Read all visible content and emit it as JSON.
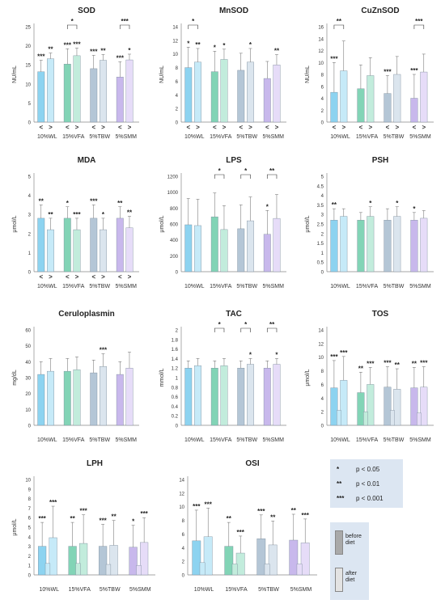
{
  "chart_data": [
    {
      "type": "bar",
      "title": "SOD",
      "ylabel": "NU/mL",
      "ylim": [
        0,
        25
      ],
      "yticks": [
        0,
        5,
        10,
        15,
        20,
        25
      ],
      "categories": [
        "10%WL",
        "15%VFA",
        "5%TBW",
        "5%SMM"
      ],
      "before": [
        13.2,
        15.2,
        14.0,
        11.8
      ],
      "after": [
        16.6,
        17.4,
        16.2,
        16.3
      ],
      "before_err": [
        3,
        4,
        3.5,
        4
      ],
      "after_err": [
        1.5,
        2,
        1.5,
        1.5
      ],
      "sig_within": [
        "***",
        "**",
        "***",
        "***",
        "***",
        "**",
        "***",
        "*"
      ],
      "brackets": [
        {
          "g": 1,
          "label": "*"
        },
        {
          "g": 3,
          "label": "***"
        }
      ],
      "x_ticks": [
        "<",
        ">",
        "<",
        ">",
        "<",
        ">",
        "<",
        ">"
      ]
    },
    {
      "type": "bar",
      "title": "MnSOD",
      "ylabel": "NU/mL",
      "ylim": [
        0,
        14
      ],
      "yticks": [
        0,
        2,
        4,
        6,
        8,
        10,
        12,
        14
      ],
      "categories": [
        "10%WL",
        "15%VFA",
        "5%TBW",
        "5%SMM"
      ],
      "before": [
        8.0,
        7.4,
        7.6,
        6.4
      ],
      "after": [
        8.8,
        9.2,
        8.8,
        8.4
      ],
      "before_err": [
        3,
        3,
        2.5,
        2.5
      ],
      "after_err": [
        2,
        1.5,
        2,
        1.5
      ],
      "sig_within": [
        "*",
        "**",
        "*",
        "*",
        "",
        "*",
        "",
        "**"
      ],
      "brackets": [
        {
          "g": 0,
          "label": "*"
        }
      ],
      "x_ticks": [
        "<",
        ">",
        "<",
        ">",
        "<",
        ">",
        "<",
        ">"
      ]
    },
    {
      "type": "bar",
      "title": "CuZnSOD",
      "ylabel": "NU/mL",
      "ylim": [
        0,
        16
      ],
      "yticks": [
        0,
        2,
        4,
        6,
        8,
        10,
        12,
        14,
        16
      ],
      "categories": [
        "10%WL",
        "15%VFA",
        "5%TBW",
        "5%SMM"
      ],
      "before": [
        5.0,
        5.6,
        4.8,
        4.0
      ],
      "after": [
        8.6,
        7.8,
        8.0,
        8.4
      ],
      "before_err": [
        5,
        4,
        3,
        4
      ],
      "after_err": [
        5,
        3,
        3,
        3
      ],
      "sig_within": [
        "***",
        "",
        "",
        "",
        "***",
        "",
        "***",
        ""
      ],
      "brackets": [
        {
          "g": 0,
          "label": "**"
        },
        {
          "g": 3,
          "label": "***"
        }
      ],
      "x_ticks": [
        "<",
        ">",
        "<",
        ">",
        "<",
        ">",
        "<",
        ">"
      ]
    },
    {
      "type": "bar",
      "title": "MDA",
      "ylabel": "μmol/L",
      "ylim": [
        0,
        5
      ],
      "yticks": [
        0,
        1,
        2,
        3,
        4,
        5
      ],
      "categories": [
        "10%WL",
        "15%VFA",
        "5%TBW",
        "5%SMM"
      ],
      "before": [
        2.8,
        2.8,
        2.8,
        2.8
      ],
      "after": [
        2.2,
        2.2,
        2.2,
        2.3
      ],
      "before_err": [
        0.7,
        0.6,
        0.7,
        0.6
      ],
      "after_err": [
        0.6,
        0.6,
        0.6,
        0.6
      ],
      "sig_within": [
        "**",
        "**",
        "*",
        "***",
        "***",
        "*",
        "**",
        "**"
      ],
      "brackets": [],
      "x_ticks": [
        "<",
        ">",
        "<",
        ">",
        "<",
        ">",
        "<",
        ">"
      ]
    },
    {
      "type": "bar",
      "title": "LPS",
      "ylabel": "μmol/L",
      "ylim": [
        0,
        1200
      ],
      "yticks": [
        0,
        200,
        400,
        600,
        800,
        1000,
        1200
      ],
      "categories": [
        "10%WL",
        "15%VFA",
        "5%TBW",
        "5%SMM"
      ],
      "before": [
        590,
        690,
        540,
        470
      ],
      "after": [
        580,
        530,
        640,
        670
      ],
      "before_err": [
        330,
        300,
        300,
        300
      ],
      "after_err": [
        330,
        300,
        300,
        300
      ],
      "sig_within": [
        "",
        "",
        "",
        "",
        "",
        "",
        "*",
        ""
      ],
      "brackets": [
        {
          "g": 1,
          "label": "*"
        },
        {
          "g": 2,
          "label": "*"
        },
        {
          "g": 3,
          "label": "**"
        }
      ],
      "x_ticks": [
        "",
        "",
        "",
        "",
        "",
        "",
        "",
        ""
      ]
    },
    {
      "type": "bar",
      "title": "PSH",
      "ylabel": "μmol/L",
      "ylim": [
        0,
        5
      ],
      "yticks": [
        0,
        0.5,
        1,
        1.5,
        2,
        2.5,
        3,
        3.5,
        4,
        4.5,
        5
      ],
      "categories": [
        "10%WL",
        "15%VFA",
        "5%TBW",
        "5%SMM"
      ],
      "before": [
        2.7,
        2.7,
        2.7,
        2.7
      ],
      "after": [
        2.9,
        2.9,
        2.9,
        2.8
      ],
      "before_err": [
        0.6,
        0.4,
        0.6,
        0.4
      ],
      "after_err": [
        0.4,
        0.5,
        0.5,
        0.4
      ],
      "sig_within": [
        "**",
        "",
        "",
        "*",
        "",
        "*",
        "*",
        ""
      ],
      "brackets": [],
      "x_ticks": [
        "",
        "",
        "",
        "",
        "",
        "",
        "",
        ""
      ]
    },
    {
      "type": "bar",
      "title": "Ceruloplasmin",
      "ylabel": "mg/dL",
      "ylim": [
        0,
        60
      ],
      "yticks": [
        0,
        10,
        20,
        30,
        40,
        50,
        60
      ],
      "categories": [
        "10%WL",
        "15%VFA",
        "5%TBW",
        "5%SMM"
      ],
      "before": [
        32,
        34,
        33,
        32
      ],
      "after": [
        34,
        35,
        37,
        36
      ],
      "before_err": [
        8,
        8,
        8,
        8
      ],
      "after_err": [
        8,
        8,
        8,
        10
      ],
      "sig_within": [
        "",
        "",
        "",
        "",
        "",
        "***",
        "",
        ""
      ],
      "brackets": [],
      "x_ticks": [
        "",
        "",
        "",
        "",
        "",
        "",
        "",
        ""
      ]
    },
    {
      "type": "bar",
      "title": "TAC",
      "ylabel": "mmol/L",
      "ylim": [
        0,
        2
      ],
      "yticks": [
        0,
        0.2,
        0.4,
        0.6,
        0.8,
        1,
        1.2,
        1.4,
        1.6,
        1.8,
        2
      ],
      "categories": [
        "10%WL",
        "15%VFA",
        "5%TBW",
        "5%SMM"
      ],
      "before": [
        1.2,
        1.2,
        1.2,
        1.2
      ],
      "after": [
        1.25,
        1.25,
        1.28,
        1.28
      ],
      "before_err": [
        0.15,
        0.15,
        0.15,
        0.15
      ],
      "after_err": [
        0.15,
        0.15,
        0.12,
        0.12
      ],
      "sig_within": [
        "",
        "",
        "",
        "",
        "",
        "*",
        "",
        "*"
      ],
      "brackets": [
        {
          "g": 1,
          "label": "*"
        },
        {
          "g": 2,
          "label": "*"
        },
        {
          "g": 3,
          "label": "**"
        }
      ],
      "x_ticks": [
        "",
        "",
        "",
        "",
        "",
        "",
        "",
        ""
      ]
    },
    {
      "type": "bar",
      "title": "TOS",
      "ylabel": "μmol/L",
      "ylim": [
        0,
        14
      ],
      "yticks": [
        0,
        2,
        4,
        6,
        8,
        10,
        12,
        14
      ],
      "categories": [
        "10%WL",
        "15%VFA",
        "5%TBW",
        "5%SMM"
      ],
      "before": [
        5.5,
        4.8,
        5.6,
        5.5
      ],
      "after": [
        6.6,
        6.0,
        5.3,
        5.6
      ],
      "before_err": [
        4,
        3,
        3,
        3
      ],
      "after_err": [
        3.5,
        2.5,
        3,
        3
      ],
      "sig_within": [
        "***",
        "***",
        "**",
        "***",
        "***",
        "**",
        "**",
        "***"
      ],
      "brackets": [],
      "second_bars": [
        2.2,
        2.0,
        2.2,
        1.8
      ],
      "x_ticks": [
        "",
        "",
        "",
        "",
        "",
        "",
        "",
        ""
      ]
    },
    {
      "type": "bar",
      "title": "LPH",
      "ylabel": "μmol/L",
      "ylim": [
        0,
        10
      ],
      "yticks": [
        0,
        1,
        2,
        3,
        4,
        5,
        6,
        7,
        8,
        9,
        10
      ],
      "categories": [
        "10%WL",
        "15%VFA",
        "5%TBW",
        "5%SMM"
      ],
      "before": [
        3.0,
        3.0,
        3.0,
        2.9
      ],
      "after": [
        3.9,
        3.3,
        3.1,
        3.4
      ],
      "before_err": [
        2.5,
        2.5,
        2.3,
        2.3
      ],
      "after_err": [
        3.3,
        3,
        2.6,
        2.6
      ],
      "sig_within": [
        "***",
        "***",
        "**",
        "***",
        "***",
        "**",
        "*",
        "***"
      ],
      "brackets": [],
      "second_bars": [
        1.2,
        1.2,
        1.1,
        1.0
      ],
      "x_ticks": [
        "",
        "",
        "",
        "",
        "",
        "",
        "",
        ""
      ]
    },
    {
      "type": "bar",
      "title": "OSI",
      "ylabel": "",
      "ylim": [
        0,
        14
      ],
      "yticks": [
        0,
        2,
        4,
        6,
        8,
        10,
        12,
        14
      ],
      "categories": [
        "10%WL",
        "15%VFA",
        "5%TBW",
        "5%SMM"
      ],
      "before": [
        5.0,
        4.2,
        5.3,
        5.1
      ],
      "after": [
        5.6,
        3.2,
        4.4,
        4.7
      ],
      "before_err": [
        4.5,
        3.5,
        3.5,
        3.8
      ],
      "after_err": [
        4.2,
        2.5,
        3.5,
        3.5
      ],
      "sig_within": [
        "***",
        "***",
        "**",
        "***",
        "***",
        "**",
        "**",
        "***"
      ],
      "brackets": [],
      "second_bars": [
        1.8,
        1.6,
        1.6,
        1.6
      ],
      "x_ticks": [
        "",
        "",
        "",
        "",
        "",
        "",
        "",
        ""
      ]
    }
  ],
  "colors": {
    "blue": "#8dd3f0",
    "green": "#82d4b6",
    "grey": "#b4c6d6",
    "purple": "#c8b8ec",
    "blue_light": "#c6eaf8",
    "green_light": "#c2ecdc",
    "grey_light": "#dbe5ee",
    "purple_light": "#e6dcf8"
  },
  "legend": {
    "rows": [
      {
        "sym": "*",
        "text": "p < 0.05"
      },
      {
        "sym": "**",
        "text": "p < 0.01"
      },
      {
        "sym": "***",
        "text": "p < 0.001"
      }
    ],
    "before_label": "before diet",
    "after_label": "after diet"
  }
}
